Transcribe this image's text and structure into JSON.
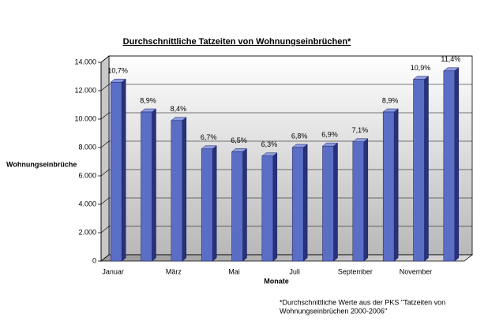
{
  "chart_data": {
    "type": "bar3d",
    "title": "Durchschnittliche Tatzeiten von Wohnungseinbrüchen*",
    "x_label": "Monate",
    "y_label": "Wohnungseinbrüche",
    "categories": [
      "Januar",
      null,
      "März",
      null,
      "Mai",
      null,
      "Juli",
      null,
      "September",
      null,
      "November",
      null
    ],
    "values": [
      12600,
      10500,
      9900,
      7900,
      7700,
      7400,
      8000,
      8100,
      8400,
      10500,
      12800,
      13400
    ],
    "shares": {
      "values": [
        10.7,
        8.9,
        8.4,
        6.7,
        6.5,
        6.3,
        6.8,
        6.9,
        7.1,
        8.9,
        10.9,
        11.4
      ],
      "value_labels": [
        "10,7%",
        "8,9%",
        "8,4%",
        "6,7%",
        "6,5%",
        "6,3%",
        "6,8%",
        "6,9%",
        "7,1%",
        "8,9%",
        "10,9%",
        "11,4%"
      ]
    },
    "color": "#5b6ec6",
    "ylim": [
      0,
      14000
    ],
    "yticks": [
      0,
      {
        "value": 2000,
        "label": "2.000"
      },
      {
        "value": 4000,
        "label": "4.000"
      },
      {
        "value": 6000,
        "label": "6.000"
      },
      {
        "value": 8000,
        "label": "8.000"
      },
      {
        "value": 10000,
        "label": "10.000"
      },
      {
        "value": 12000,
        "label": "12.000"
      },
      {
        "value": 14000,
        "label": "14.000"
      }
    ],
    "grid": true,
    "footnote": [
      "*Durchschnittliche Werte aus der PKS \"Tatzeiten von",
      "Wohnungseinbrüchen 2000-2006\""
    ]
  }
}
